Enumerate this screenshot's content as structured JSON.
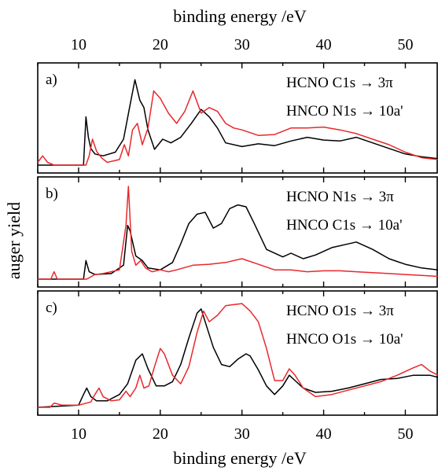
{
  "chart_data": {
    "type": "line",
    "x_axis_top_label": "binding energy /eV",
    "x_axis_bottom_label": "binding energy /eV",
    "y_axis_label": "auger yield",
    "xlim": [
      5,
      54
    ],
    "xticks": [
      10,
      20,
      30,
      40,
      50
    ],
    "colors": {
      "HCNO": "#000000",
      "HNCO": "#e8282b"
    },
    "panels": [
      {
        "label": "a)",
        "legend": [
          "HCNO C1s → 3π",
          "HNCO N1s → 10a'"
        ],
        "series": [
          {
            "molecule": "HCNO",
            "color": "#000000",
            "x": [
              5,
              10.6,
              10.9,
              11.2,
              11.5,
              12,
              13,
              14.5,
              15.5,
              16.2,
              16.9,
              17.5,
              18,
              18.5,
              19.3,
              20.3,
              21.3,
              22.5,
              23.8,
              25,
              26,
              27,
              28,
              30,
              32,
              34,
              36,
              38,
              40,
              42,
              44,
              46,
              48,
              50,
              52,
              54
            ],
            "y": [
              0.0,
              0.0,
              0.52,
              0.3,
              0.18,
              0.12,
              0.1,
              0.14,
              0.28,
              0.6,
              0.92,
              0.7,
              0.62,
              0.38,
              0.17,
              0.28,
              0.24,
              0.3,
              0.45,
              0.6,
              0.52,
              0.4,
              0.24,
              0.2,
              0.23,
              0.21,
              0.26,
              0.3,
              0.27,
              0.26,
              0.3,
              0.24,
              0.18,
              0.12,
              0.09,
              0.07
            ]
          },
          {
            "molecule": "HNCO",
            "color": "#e8282b",
            "x": [
              5,
              5.6,
              6.2,
              7,
              8,
              10,
              10.9,
              11.3,
              11.7,
              12.2,
              12.8,
              13.5,
              15,
              15.6,
              16.1,
              16.6,
              17.2,
              17.8,
              18.5,
              19.2,
              20,
              21,
              22,
              23,
              24,
              25,
              26,
              27,
              28,
              29,
              30,
              32,
              34,
              36,
              38,
              40,
              42,
              44,
              46,
              48,
              50,
              52,
              54
            ],
            "y": [
              0.03,
              0.1,
              0.03,
              0.0,
              0.0,
              0.0,
              0.0,
              0.1,
              0.28,
              0.15,
              0.08,
              0.03,
              0.06,
              0.22,
              0.1,
              0.38,
              0.45,
              0.22,
              0.4,
              0.8,
              0.72,
              0.56,
              0.45,
              0.58,
              0.8,
              0.56,
              0.62,
              0.58,
              0.45,
              0.4,
              0.38,
              0.32,
              0.33,
              0.4,
              0.4,
              0.41,
              0.38,
              0.34,
              0.28,
              0.22,
              0.14,
              0.08,
              0.06
            ]
          }
        ]
      },
      {
        "label": "b)",
        "legend": [
          "HCNO N1s → 3π",
          "HNCO C1s → 10a'"
        ],
        "series": [
          {
            "molecule": "HCNO",
            "color": "#000000",
            "x": [
              5,
              10.6,
              10.9,
              11.3,
              12,
              14,
              15.5,
              16,
              16.3,
              17,
              17.8,
              18.5,
              20,
              21.5,
              22.5,
              23.5,
              24.5,
              25.5,
              26.5,
              27.5,
              28.5,
              29.5,
              30.5,
              31.5,
              33,
              35,
              36,
              37.5,
              39,
              41,
              43,
              44,
              46,
              48,
              50,
              52,
              54
            ],
            "y": [
              0.0,
              0.0,
              0.2,
              0.08,
              0.05,
              0.06,
              0.15,
              0.58,
              0.52,
              0.25,
              0.2,
              0.12,
              0.1,
              0.18,
              0.38,
              0.6,
              0.7,
              0.72,
              0.55,
              0.6,
              0.76,
              0.8,
              0.78,
              0.6,
              0.32,
              0.24,
              0.28,
              0.22,
              0.26,
              0.34,
              0.38,
              0.4,
              0.32,
              0.22,
              0.16,
              0.12,
              0.1
            ]
          },
          {
            "molecule": "HNCO",
            "color": "#e8282b",
            "x": [
              5,
              6.6,
              7,
              7.4,
              8,
              11,
              12,
              13,
              15,
              15.8,
              16.1,
              16.5,
              17,
              17.6,
              18.2,
              19,
              20,
              21,
              22,
              24,
              26,
              28,
              30,
              32,
              34,
              36,
              38,
              40,
              42,
              44,
              46,
              48,
              50,
              52,
              54
            ],
            "y": [
              0.0,
              0.0,
              0.08,
              0.0,
              0.0,
              0.0,
              0.05,
              0.06,
              0.1,
              0.58,
              1.0,
              0.3,
              0.15,
              0.2,
              0.12,
              0.08,
              0.1,
              0.08,
              0.1,
              0.15,
              0.16,
              0.18,
              0.22,
              0.16,
              0.1,
              0.1,
              0.08,
              0.09,
              0.09,
              0.08,
              0.07,
              0.06,
              0.05,
              0.04,
              0.03
            ]
          }
        ]
      },
      {
        "label": "c)",
        "legend": [
          "HCNO O1s → 3π",
          "HNCO O1s → 10a'"
        ],
        "series": [
          {
            "molecule": "HCNO",
            "color": "#000000",
            "x": [
              5,
              10,
              10.6,
              11,
              11.5,
              12.2,
              13.5,
              15,
              16,
              17,
              17.8,
              18.5,
              19.5,
              20.5,
              21.5,
              22.5,
              23.5,
              24.5,
              25,
              25.5,
              26.5,
              27.5,
              28.5,
              29.5,
              30.5,
              31,
              32,
              33,
              34,
              35,
              35.8,
              36.5,
              37.5,
              39,
              41,
              43,
              45,
              47,
              49,
              51,
              53,
              54
            ],
            "y": [
              0.0,
              0.02,
              0.12,
              0.18,
              0.1,
              0.06,
              0.06,
              0.12,
              0.22,
              0.44,
              0.5,
              0.36,
              0.2,
              0.2,
              0.24,
              0.4,
              0.65,
              0.88,
              0.92,
              0.8,
              0.56,
              0.4,
              0.38,
              0.45,
              0.5,
              0.48,
              0.35,
              0.2,
              0.12,
              0.2,
              0.3,
              0.25,
              0.18,
              0.14,
              0.15,
              0.18,
              0.22,
              0.26,
              0.27,
              0.3,
              0.3,
              0.28
            ]
          },
          {
            "molecule": "HNCO",
            "color": "#e8282b",
            "x": [
              5,
              6.5,
              7,
              8,
              10,
              11.5,
              12,
              12.5,
              13,
              14,
              15,
              15.8,
              16.3,
              17,
              17.5,
              18,
              18.6,
              19.3,
              20,
              20.5,
              21.5,
              22.5,
              23.5,
              24.5,
              25.3,
              26,
              27,
              28,
              29,
              30,
              31,
              32,
              33,
              34,
              35,
              35.8,
              36.5,
              37.5,
              39,
              41,
              43,
              45,
              47,
              49,
              51,
              52,
              53,
              54
            ],
            "y": [
              0.0,
              0.0,
              0.04,
              0.02,
              0.02,
              0.05,
              0.12,
              0.18,
              0.1,
              0.06,
              0.07,
              0.15,
              0.1,
              0.18,
              0.3,
              0.18,
              0.2,
              0.38,
              0.55,
              0.5,
              0.3,
              0.22,
              0.38,
              0.7,
              0.9,
              0.8,
              0.86,
              0.95,
              0.96,
              0.97,
              0.9,
              0.8,
              0.55,
              0.25,
              0.25,
              0.36,
              0.3,
              0.18,
              0.1,
              0.12,
              0.16,
              0.2,
              0.24,
              0.3,
              0.37,
              0.4,
              0.34,
              0.3
            ]
          }
        ]
      }
    ]
  }
}
